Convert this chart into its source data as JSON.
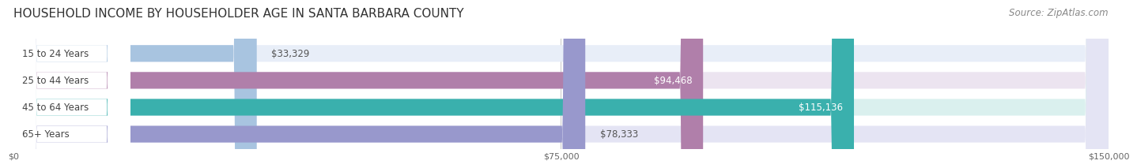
{
  "title": "HOUSEHOLD INCOME BY HOUSEHOLDER AGE IN SANTA BARBARA COUNTY",
  "source": "Source: ZipAtlas.com",
  "categories": [
    "15 to 24 Years",
    "25 to 44 Years",
    "45 to 64 Years",
    "65+ Years"
  ],
  "values": [
    33329,
    94468,
    115136,
    78333
  ],
  "value_labels": [
    "$33,329",
    "$94,468",
    "$115,136",
    "$78,333"
  ],
  "bar_colors": [
    "#a8c4e0",
    "#b07faa",
    "#3ab0ad",
    "#9898cc"
  ],
  "bar_bg_colors": [
    "#e8eef8",
    "#ece4f0",
    "#daf0ee",
    "#e4e4f4"
  ],
  "value_label_inside": [
    false,
    true,
    true,
    false
  ],
  "xlim": [
    0,
    150000
  ],
  "xticks": [
    0,
    75000,
    150000
  ],
  "xticklabels": [
    "$0",
    "$75,000",
    "$150,000"
  ],
  "title_fontsize": 11,
  "source_fontsize": 8.5,
  "label_fontsize": 8.5,
  "value_fontsize": 8.5,
  "bar_height": 0.62,
  "background_color": "#ffffff",
  "plot_bg_color": "#ffffff"
}
